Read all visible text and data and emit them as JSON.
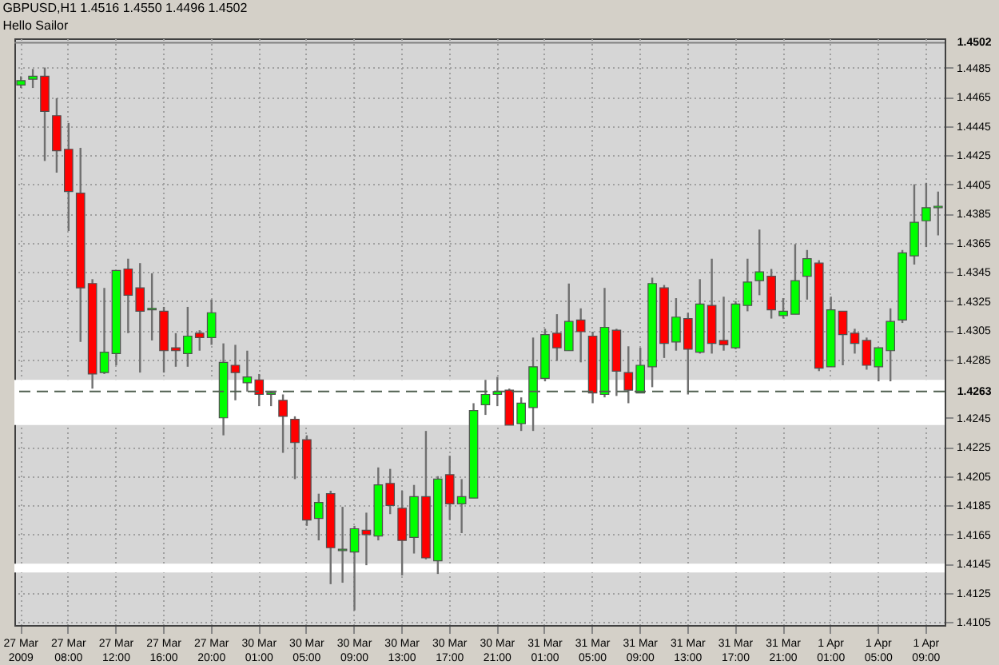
{
  "chart_data": {
    "type": "candlestick",
    "title": "GBPUSD,H1  1.4516 1.4550 1.4496 1.4502",
    "subtitle": "Hello Sailor",
    "categories": [
      "27 Mar 2009",
      null,
      null,
      null,
      "27 Mar 08:00",
      null,
      null,
      null,
      "27 Mar 12:00",
      null,
      null,
      null,
      "27 Mar 16:00",
      null,
      null,
      null,
      "27 Mar 20:00",
      null,
      null,
      null,
      "30 Mar 01:00",
      null,
      null,
      null,
      "30 Mar 05:00",
      null,
      null,
      null,
      "30 Mar 09:00",
      null,
      null,
      null,
      "30 Mar 13:00",
      null,
      null,
      null,
      "30 Mar 17:00",
      null,
      null,
      null,
      "30 Mar 21:00",
      null,
      null,
      null,
      "31 Mar 01:00",
      null,
      null,
      null,
      "31 Mar 05:00",
      null,
      null,
      null,
      "31 Mar 09:00",
      null,
      null,
      null,
      "31 Mar 13:00",
      null,
      null,
      null,
      "31 Mar 17:00",
      null,
      null,
      null,
      "31 Mar 21:00",
      null,
      null,
      null,
      "1 Apr 01:00",
      null,
      null,
      null,
      "1 Apr 05:00",
      null,
      null,
      null,
      "1 Apr 09:00",
      null
    ],
    "ohlc": [
      [
        1.4473,
        1.4479,
        1.4471,
        1.4476
      ],
      [
        1.4477,
        1.4484,
        1.4471,
        1.4479
      ],
      [
        1.4479,
        1.4485,
        1.4421,
        1.4455
      ],
      [
        1.4452,
        1.4464,
        1.4413,
        1.4428
      ],
      [
        1.4429,
        1.4447,
        1.4373,
        1.44
      ],
      [
        1.4399,
        1.443,
        1.4297,
        1.4334
      ],
      [
        1.4337,
        1.434,
        1.4265,
        1.4275
      ],
      [
        1.4276,
        1.4334,
        1.4275,
        1.429
      ],
      [
        1.4289,
        1.4346,
        1.4281,
        1.4346
      ],
      [
        1.4347,
        1.4354,
        1.4303,
        1.4329
      ],
      [
        1.4334,
        1.4351,
        1.4276,
        1.4318
      ],
      [
        1.4319,
        1.4344,
        1.4298,
        1.432
      ],
      [
        1.4318,
        1.4321,
        1.4276,
        1.4291
      ],
      [
        1.4293,
        1.4303,
        1.428,
        1.4291
      ],
      [
        1.4289,
        1.4321,
        1.428,
        1.4301
      ],
      [
        1.4303,
        1.4305,
        1.4291,
        1.43
      ],
      [
        1.43,
        1.4326,
        1.4295,
        1.4317
      ],
      [
        1.4245,
        1.4296,
        1.4233,
        1.4283
      ],
      [
        1.4281,
        1.4295,
        1.4257,
        1.4276
      ],
      [
        1.4269,
        1.4291,
        1.4263,
        1.4273
      ],
      [
        1.4271,
        1.4275,
        1.4253,
        1.4261
      ],
      [
        1.4261,
        1.4263,
        1.4253,
        1.4262
      ],
      [
        1.4257,
        1.4261,
        1.4221,
        1.4246
      ],
      [
        1.4244,
        1.4246,
        1.4203,
        1.4228
      ],
      [
        1.423,
        1.4233,
        1.4171,
        1.4175
      ],
      [
        1.4176,
        1.4193,
        1.4161,
        1.4187
      ],
      [
        1.4193,
        1.4195,
        1.4131,
        1.4156
      ],
      [
        1.4154,
        1.4184,
        1.4132,
        1.4155
      ],
      [
        1.4153,
        1.4171,
        1.4113,
        1.4169
      ],
      [
        1.4168,
        1.418,
        1.4144,
        1.4165
      ],
      [
        1.4164,
        1.4211,
        1.4161,
        1.4199
      ],
      [
        1.42,
        1.421,
        1.4179,
        1.4185
      ],
      [
        1.4183,
        1.4195,
        1.4137,
        1.4161
      ],
      [
        1.4163,
        1.4199,
        1.4152,
        1.4191
      ],
      [
        1.4191,
        1.4236,
        1.4148,
        1.4149
      ],
      [
        1.4147,
        1.4205,
        1.4138,
        1.4203
      ],
      [
        1.4206,
        1.4219,
        1.4175,
        1.4186
      ],
      [
        1.4186,
        1.4203,
        1.4166,
        1.4191
      ],
      [
        1.419,
        1.4255,
        1.419,
        1.425
      ],
      [
        1.4254,
        1.4271,
        1.4247,
        1.4261
      ],
      [
        1.4261,
        1.4273,
        1.4253,
        1.4263
      ],
      [
        1.4264,
        1.4265,
        1.424,
        1.424
      ],
      [
        1.4241,
        1.4259,
        1.4236,
        1.4255
      ],
      [
        1.4252,
        1.43,
        1.4236,
        1.428
      ],
      [
        1.4272,
        1.4306,
        1.427,
        1.4302
      ],
      [
        1.4303,
        1.4316,
        1.4284,
        1.4293
      ],
      [
        1.4291,
        1.4337,
        1.4291,
        1.4311
      ],
      [
        1.4312,
        1.432,
        1.4283,
        1.4304
      ],
      [
        1.4301,
        1.4304,
        1.4255,
        1.4262
      ],
      [
        1.4261,
        1.4334,
        1.4259,
        1.4307
      ],
      [
        1.4305,
        1.4306,
        1.426,
        1.4277
      ],
      [
        1.4276,
        1.4294,
        1.4255,
        1.4264
      ],
      [
        1.4262,
        1.4293,
        1.4262,
        1.4281
      ],
      [
        1.428,
        1.4341,
        1.4266,
        1.4337
      ],
      [
        1.4334,
        1.4336,
        1.4286,
        1.4296
      ],
      [
        1.4297,
        1.4327,
        1.4291,
        1.4314
      ],
      [
        1.4313,
        1.4317,
        1.4261,
        1.4292
      ],
      [
        1.429,
        1.434,
        1.4289,
        1.4323
      ],
      [
        1.4322,
        1.4354,
        1.4289,
        1.4296
      ],
      [
        1.4298,
        1.4328,
        1.4291,
        1.4295
      ],
      [
        1.4293,
        1.4325,
        1.4292,
        1.4323
      ],
      [
        1.4322,
        1.4354,
        1.4318,
        1.4338
      ],
      [
        1.4339,
        1.4374,
        1.4329,
        1.4345
      ],
      [
        1.4342,
        1.4347,
        1.4313,
        1.4319
      ],
      [
        1.4315,
        1.4327,
        1.4313,
        1.4318
      ],
      [
        1.4316,
        1.4364,
        1.4316,
        1.4339
      ],
      [
        1.4342,
        1.436,
        1.4326,
        1.4354
      ],
      [
        1.4351,
        1.4353,
        1.4277,
        1.4279
      ],
      [
        1.428,
        1.4328,
        1.428,
        1.4319
      ],
      [
        1.4318,
        1.4318,
        1.4281,
        1.4302
      ],
      [
        1.4303,
        1.4306,
        1.4289,
        1.4296
      ],
      [
        1.4298,
        1.43,
        1.4278,
        1.4281
      ],
      [
        1.428,
        1.4293,
        1.427,
        1.4293
      ],
      [
        1.4291,
        1.432,
        1.427,
        1.4311
      ],
      [
        1.4312,
        1.436,
        1.431,
        1.4358
      ],
      [
        1.4356,
        1.4405,
        1.435,
        1.4379
      ],
      [
        1.438,
        1.4406,
        1.4362,
        1.4389
      ],
      [
        1.4389,
        1.44,
        1.437,
        1.439
      ]
    ],
    "colors": [
      "#00ff00",
      "#00ff00",
      "#ff0000",
      "#ff0000",
      "#ff0000",
      "#ff0000",
      "#ff0000",
      "#00ff00",
      "#00ff00",
      "#ff0000",
      "#ff0000",
      "#00ff00",
      "#ff0000",
      "#ff0000",
      "#00ff00",
      "#ff0000",
      "#00ff00",
      "#00ff00",
      "#ff0000",
      "#00ff00",
      "#ff0000",
      "#00ff00",
      "#ff0000",
      "#ff0000",
      "#ff0000",
      "#00ff00",
      "#ff0000",
      "#00ff00",
      "#00ff00",
      "#ff0000",
      "#00ff00",
      "#ff0000",
      "#ff0000",
      "#00ff00",
      "#ff0000",
      "#00ff00",
      "#ff0000",
      "#00ff00",
      "#00ff00",
      "#00ff00",
      "#00ff00",
      "#ff0000",
      "#00ff00",
      "#00ff00",
      "#00ff00",
      "#ff0000",
      "#00ff00",
      "#ff0000",
      "#ff0000",
      "#00ff00",
      "#ff0000",
      "#ff0000",
      "#00ff00",
      "#00ff00",
      "#ff0000",
      "#00ff00",
      "#ff0000",
      "#00ff00",
      "#ff0000",
      "#ff0000",
      "#00ff00",
      "#00ff00",
      "#00ff00",
      "#ff0000",
      "#00ff00",
      "#00ff00",
      "#00ff00",
      "#ff0000",
      "#00ff00",
      "#ff0000",
      "#ff0000",
      "#ff0000",
      "#00ff00",
      "#00ff00",
      "#00ff00",
      "#00ff00",
      "#00ff00",
      "#00ff00"
    ],
    "ylim": [
      1.4103,
      1.4505
    ],
    "yticks": [
      1.4105,
      1.4125,
      1.4145,
      1.4165,
      1.4185,
      1.4205,
      1.4225,
      1.4245,
      1.4285,
      1.4305,
      1.4325,
      1.4345,
      1.4365,
      1.4385,
      1.4405,
      1.4425,
      1.4445,
      1.4465,
      1.4485
    ],
    "grid": true,
    "ref_lines": [
      {
        "axis": "y",
        "value": 1.4263,
        "label": "1.4263",
        "line_style": "dashed",
        "color": "#4f5f4f"
      },
      {
        "axis": "y",
        "value": 1.4502,
        "label": "1.4502",
        "line_style": "solid",
        "color": "#808080"
      }
    ],
    "bands": [
      {
        "axis": "y",
        "from": 1.424,
        "to": 1.4271,
        "color": "#ffffff"
      },
      {
        "axis": "y",
        "from": 1.4139,
        "to": 1.4145,
        "color": "#ffffff"
      }
    ]
  }
}
